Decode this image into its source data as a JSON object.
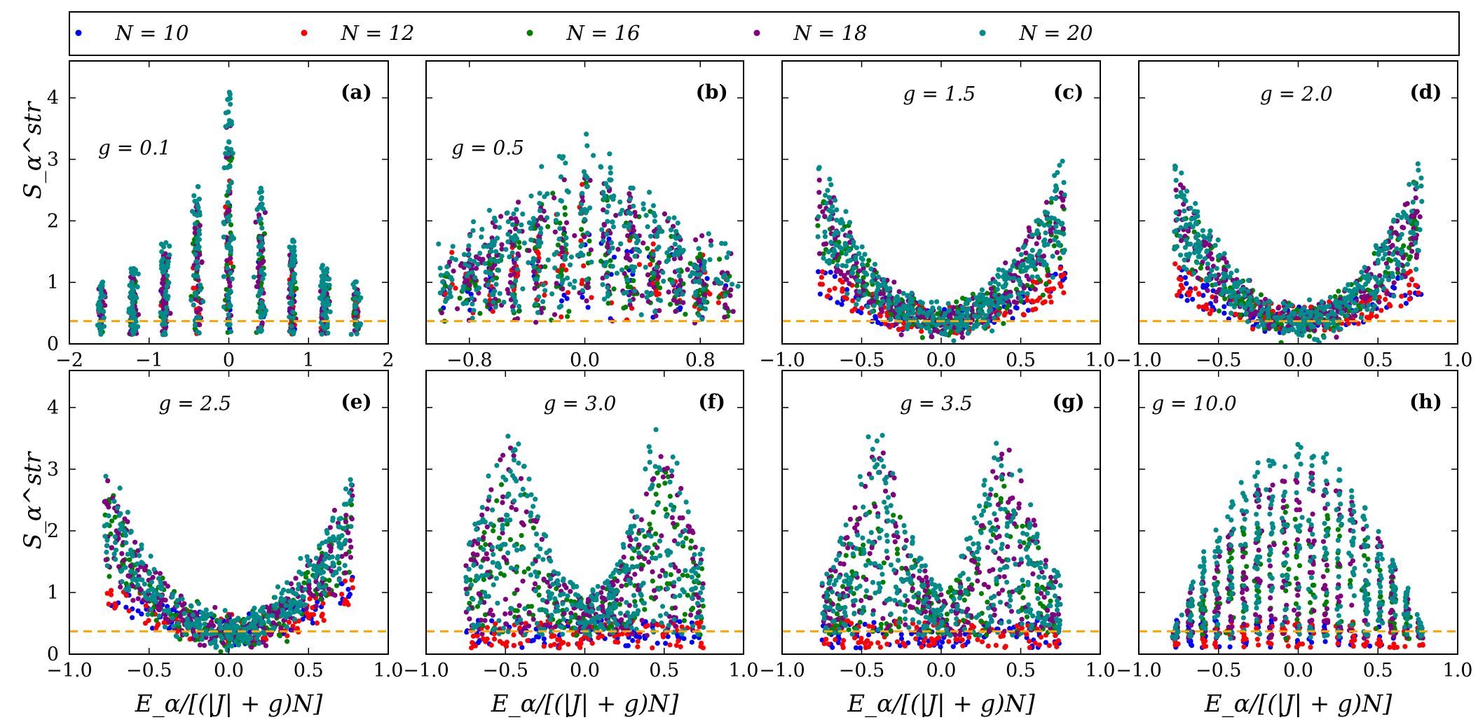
{
  "figure": {
    "ylabel": "S_α^str",
    "xlabel": "E_α/[(|J| + g)N]",
    "threshold_color": "#FFA500"
  },
  "legend": [
    {
      "label": "N = 10",
      "color": "#0000FF"
    },
    {
      "label": "N = 12",
      "color": "#FF0000"
    },
    {
      "label": "N = 16",
      "color": "#008000"
    },
    {
      "label": "N = 18",
      "color": "#800080"
    },
    {
      "label": "N = 20",
      "color": "#008B8B"
    }
  ],
  "chart_data": [
    {
      "type": "scatter",
      "letter": "(a)",
      "g_label": "g = 0.1",
      "xlim": [
        -2,
        2
      ],
      "ylim": [
        0,
        4.6
      ],
      "xticks": [
        -2,
        -1,
        0,
        1,
        2
      ],
      "yticks": [
        0,
        1,
        2,
        3,
        4
      ],
      "xtick_labels": [
        "−2",
        "−1",
        "0",
        "1",
        "2"
      ],
      "ytick_labels": [
        "0",
        "1",
        "2",
        "3",
        "4"
      ],
      "show_ytick_labels": true,
      "show_xlabel": false,
      "shape": "spikes",
      "threshold": 0.37
    },
    {
      "type": "scatter",
      "letter": "(b)",
      "g_label": "g = 0.5",
      "xlim": [
        -1.1,
        1.1
      ],
      "ylim": [
        0,
        4.6
      ],
      "xticks": [
        -0.8,
        0.0,
        0.8
      ],
      "yticks": [
        0,
        1,
        2,
        3,
        4
      ],
      "xtick_labels": [
        "−0.8",
        "0.0",
        "0.8"
      ],
      "ytick_labels": [],
      "show_ytick_labels": false,
      "show_xlabel": false,
      "shape": "spikes_dense",
      "threshold": 0.37
    },
    {
      "type": "scatter",
      "letter": "(c)",
      "g_label": "g = 1.5",
      "xlim": [
        -1.0,
        1.0
      ],
      "ylim": [
        0,
        4.6
      ],
      "xticks": [
        -1.0,
        -0.5,
        0.0,
        0.5,
        1.0
      ],
      "yticks": [
        0,
        1,
        2,
        3,
        4
      ],
      "xtick_labels": [
        "−1.0",
        "−0.5",
        "0.0",
        "0.5",
        "1.0"
      ],
      "ytick_labels": [],
      "show_ytick_labels": false,
      "show_xlabel": false,
      "shape": "bowl",
      "threshold": 0.37
    },
    {
      "type": "scatter",
      "letter": "(d)",
      "g_label": "g = 2.0",
      "xlim": [
        -1.0,
        1.0
      ],
      "ylim": [
        0,
        4.6
      ],
      "xticks": [
        -1.0,
        -0.5,
        0.0,
        0.5,
        1.0
      ],
      "yticks": [
        0,
        1,
        2,
        3,
        4
      ],
      "xtick_labels": [
        "−1.0",
        "−0.5",
        "0.0",
        "0.5",
        "1.0"
      ],
      "ytick_labels": [],
      "show_ytick_labels": false,
      "show_xlabel": false,
      "shape": "bowl",
      "threshold": 0.37
    },
    {
      "type": "scatter",
      "letter": "(e)",
      "g_label": "g = 2.5",
      "xlim": [
        -1.0,
        1.0
      ],
      "ylim": [
        0,
        4.6
      ],
      "xticks": [
        -1.0,
        -0.5,
        0.0,
        0.5,
        1.0
      ],
      "yticks": [
        0,
        1,
        2,
        3,
        4
      ],
      "xtick_labels": [
        "−1.0",
        "−0.5",
        "0.0",
        "0.5",
        "1.0"
      ],
      "ytick_labels": [
        "0",
        "1",
        "2",
        "3",
        "4"
      ],
      "show_ytick_labels": true,
      "show_xlabel": true,
      "shape": "bowl",
      "threshold": 0.37
    },
    {
      "type": "scatter",
      "letter": "(f)",
      "g_label": "g = 3.0",
      "xlim": [
        -1.0,
        1.0
      ],
      "ylim": [
        0,
        4.6
      ],
      "xticks": [
        -1.0,
        -0.5,
        0.0,
        0.5,
        1.0
      ],
      "yticks": [
        0,
        1,
        2,
        3,
        4
      ],
      "xtick_labels": [
        "−1.0",
        "−0.5",
        "0.0",
        "0.5",
        "1.0"
      ],
      "ytick_labels": [],
      "show_ytick_labels": false,
      "show_xlabel": true,
      "shape": "wing",
      "threshold": 0.37
    },
    {
      "type": "scatter",
      "letter": "(g)",
      "g_label": "g = 3.5",
      "xlim": [
        -1.0,
        1.0
      ],
      "ylim": [
        0,
        4.6
      ],
      "xticks": [
        -1.0,
        -0.5,
        0.0,
        0.5,
        1.0
      ],
      "yticks": [
        0,
        1,
        2,
        3,
        4
      ],
      "xtick_labels": [
        "−1.0",
        "−0.5",
        "0.0",
        "0.5",
        "1.0"
      ],
      "ytick_labels": [],
      "show_ytick_labels": false,
      "show_xlabel": true,
      "shape": "wing2",
      "threshold": 0.37
    },
    {
      "type": "scatter",
      "letter": "(h)",
      "g_label": "g = 10.0",
      "xlim": [
        -1.0,
        1.0
      ],
      "ylim": [
        0,
        4.6
      ],
      "xticks": [
        -1.0,
        -0.5,
        0.0,
        0.5,
        1.0
      ],
      "yticks": [
        0,
        1,
        2,
        3,
        4
      ],
      "xtick_labels": [
        "−1.0",
        "−0.5",
        "0.0",
        "0.5",
        "1.0"
      ],
      "ytick_labels": [],
      "show_ytick_labels": false,
      "show_xlabel": true,
      "shape": "dome",
      "threshold": 0.37
    }
  ]
}
